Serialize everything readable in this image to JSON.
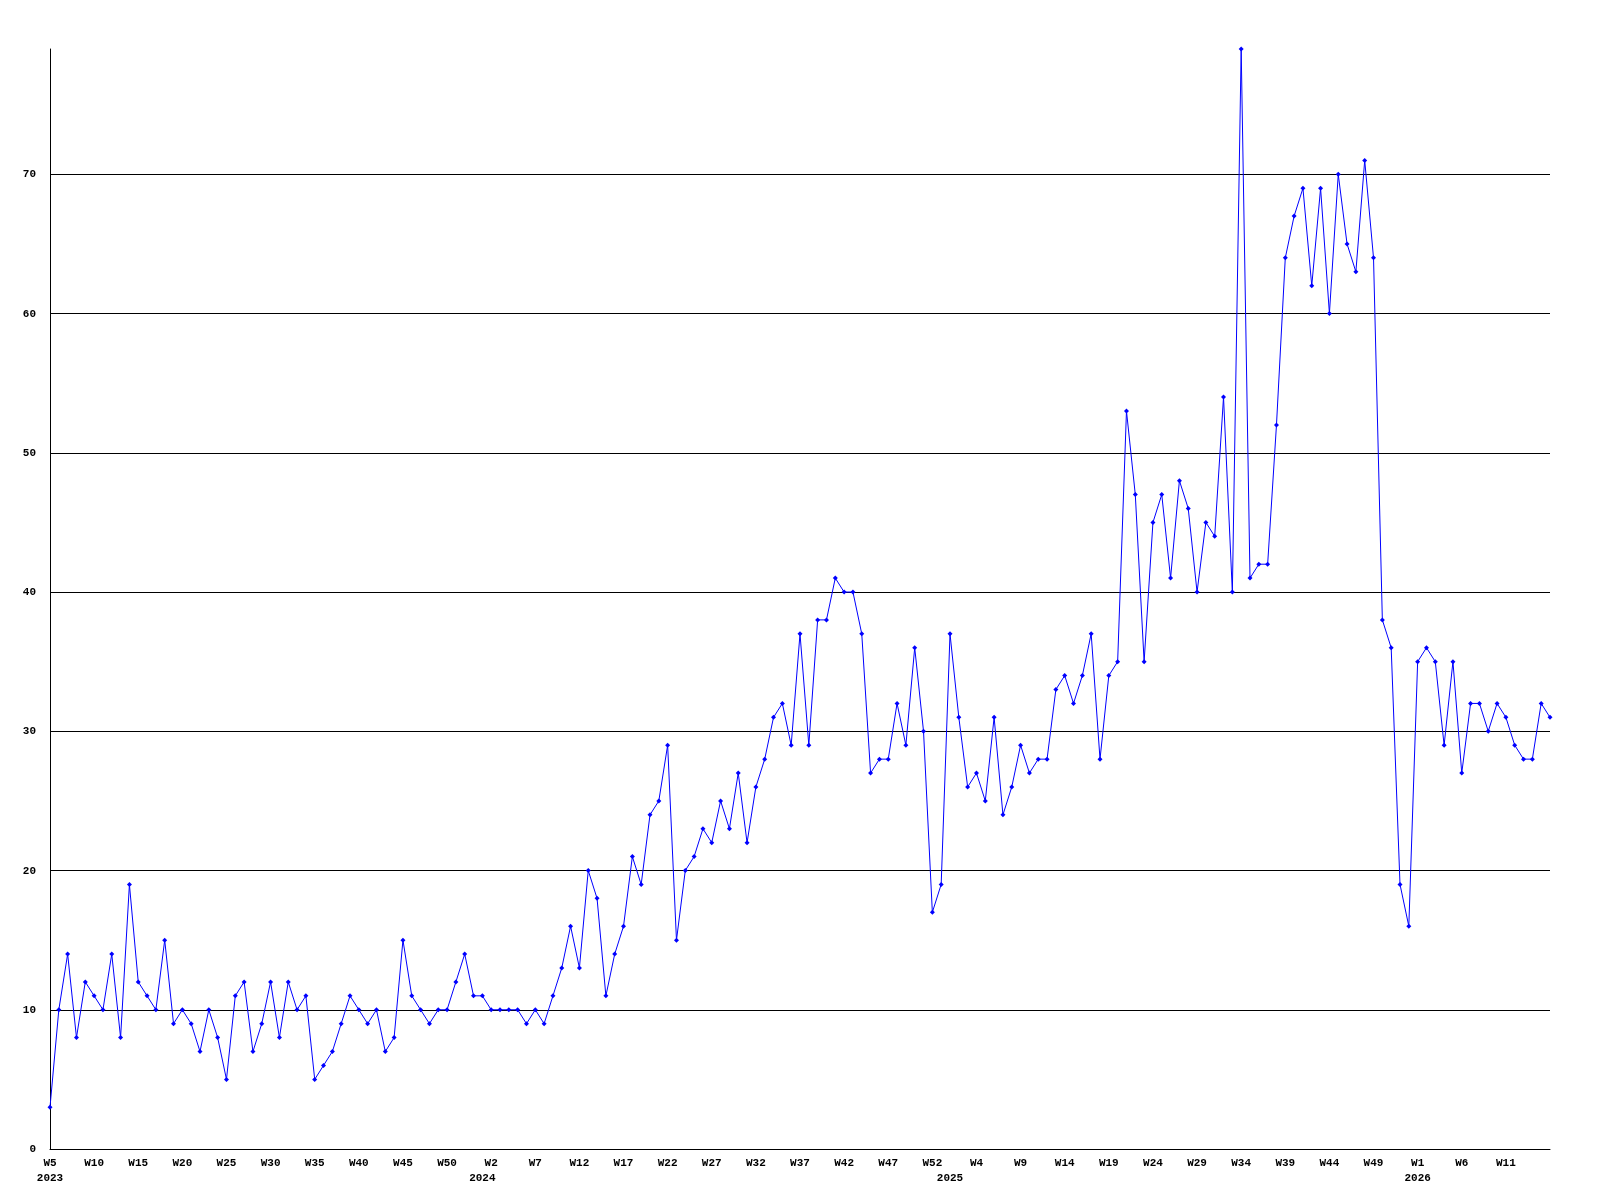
{
  "chart_data": {
    "type": "line",
    "categories": [
      "W5\n2023",
      null,
      null,
      null,
      null,
      "W10",
      null,
      null,
      null,
      null,
      "W15",
      null,
      null,
      null,
      null,
      "W20",
      null,
      null,
      null,
      null,
      "W25",
      null,
      null,
      null,
      null,
      "W30",
      null,
      null,
      null,
      null,
      "W35",
      null,
      null,
      null,
      null,
      "W40",
      null,
      null,
      null,
      null,
      "W45",
      null,
      null,
      null,
      null,
      "W50",
      null,
      null,
      null,
      "\n2024",
      "W2",
      null,
      null,
      null,
      null,
      "W7",
      null,
      null,
      null,
      null,
      "W12",
      null,
      null,
      null,
      null,
      "W17",
      null,
      null,
      null,
      null,
      "W22",
      null,
      null,
      null,
      null,
      "W27",
      null,
      null,
      null,
      null,
      "W32",
      null,
      null,
      null,
      null,
      "W37",
      null,
      null,
      null,
      null,
      "W42",
      null,
      null,
      null,
      null,
      "W47",
      null,
      null,
      null,
      null,
      "W52",
      null,
      "\n2025",
      null,
      null,
      "W4",
      null,
      null,
      null,
      null,
      "W9",
      null,
      null,
      null,
      null,
      "W14",
      null,
      null,
      null,
      null,
      "W19",
      null,
      null,
      null,
      null,
      "W24",
      null,
      null,
      null,
      null,
      "W29",
      null,
      null,
      null,
      null,
      "W34",
      null,
      null,
      null,
      null,
      "W39",
      null,
      null,
      null,
      null,
      "W44",
      null,
      null,
      null,
      null,
      "W49",
      null,
      null,
      null,
      null,
      "W1\n2026",
      null,
      null,
      null,
      null,
      "W6",
      null,
      null,
      null,
      null,
      "W11",
      null,
      null,
      null,
      null,
      null
    ],
    "series": [
      {
        "color": "#0000ff",
        "values": [
          3,
          10,
          14,
          8,
          12,
          11,
          10,
          14,
          8,
          19,
          12,
          11,
          10,
          15,
          9,
          10,
          9,
          7,
          10,
          8,
          5,
          11,
          12,
          7,
          9,
          12,
          8,
          12,
          10,
          11,
          5,
          6,
          7,
          9,
          11,
          10,
          9,
          10,
          7,
          8,
          15,
          11,
          10,
          9,
          10,
          10,
          12,
          14,
          11,
          11,
          10,
          10,
          10,
          10,
          9,
          10,
          9,
          11,
          13,
          16,
          13,
          20,
          18,
          11,
          14,
          16,
          21,
          19,
          24,
          25,
          29,
          15,
          20,
          21,
          23,
          22,
          25,
          23,
          27,
          22,
          26,
          28,
          31,
          32,
          29,
          37,
          29,
          38,
          38,
          41,
          40,
          40,
          37,
          27,
          28,
          28,
          32,
          29,
          36,
          30,
          17,
          19,
          37,
          31,
          26,
          27,
          25,
          31,
          24,
          26,
          29,
          27,
          28,
          28,
          33,
          34,
          32,
          34,
          37,
          28,
          34,
          35,
          53,
          47,
          35,
          45,
          47,
          41,
          48,
          46,
          40,
          45,
          44,
          54,
          40,
          79,
          41,
          42,
          42,
          52,
          64,
          67,
          69,
          62,
          69,
          60,
          70,
          65,
          63,
          71,
          64,
          38,
          36,
          19,
          16,
          35,
          36,
          35,
          29,
          35,
          27,
          32,
          32,
          30,
          32,
          31,
          29,
          28,
          28,
          32,
          31
        ]
      }
    ],
    "ylim": [
      0,
      79
    ],
    "yticks": [
      0,
      10,
      20,
      30,
      40,
      50,
      60,
      70
    ],
    "grid": "y",
    "marker": "diamond",
    "line_style": "solid"
  }
}
